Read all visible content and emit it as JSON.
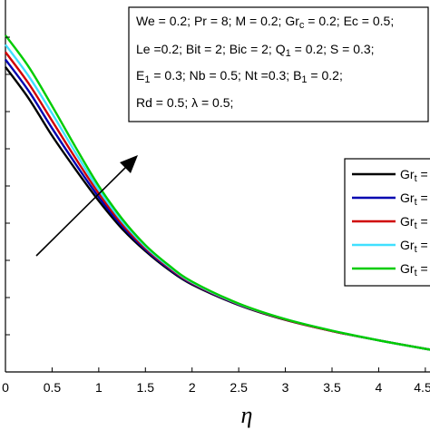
{
  "chart_data": {
    "type": "line",
    "xlabel": "η",
    "x_ticks": [
      "0",
      "0.5",
      "1",
      "1.5",
      "2",
      "2.5",
      "3",
      "3.5",
      "4",
      "4.5"
    ],
    "xlim": [
      0,
      4.55
    ],
    "ylim": [
      0,
      1
    ],
    "grid": false,
    "legend_placement": "right",
    "parameters": [
      "We = 0.2; Pr = 8; M = 0.2; Gr_c = 0.2; Ec = 0.5;",
      "Le =0.2; Bit = 2; Bic = 2; Q_1 = 0.2; S = 0.3;",
      "E_1 = 0.3; Nb = 0.5; Nt =0.3; B_1 = 0.2;",
      "Rd = 0.5; λ = 0.5;"
    ],
    "annotation": "arrow pointing in direction of increasing Gr_t",
    "x": [
      0,
      0.25,
      0.5,
      0.75,
      1.0,
      1.25,
      1.5,
      1.75,
      2.0,
      2.5,
      3.0,
      3.5,
      4.0,
      4.55
    ],
    "series": [
      {
        "name": "Gr_t =",
        "color": "#000000",
        "values": [
          0.82,
          0.735,
          0.635,
          0.545,
          0.46,
          0.385,
          0.325,
          0.275,
          0.235,
          0.18,
          0.14,
          0.11,
          0.085,
          0.06
        ]
      },
      {
        "name": "Gr_t =",
        "color": "#0000b0",
        "values": [
          0.84,
          0.755,
          0.655,
          0.56,
          0.47,
          0.392,
          0.329,
          0.278,
          0.237,
          0.181,
          0.141,
          0.11,
          0.085,
          0.06
        ]
      },
      {
        "name": "Gr_t =",
        "color": "#d00000",
        "values": [
          0.86,
          0.775,
          0.675,
          0.575,
          0.48,
          0.398,
          0.333,
          0.281,
          0.239,
          0.182,
          0.141,
          0.11,
          0.085,
          0.06
        ]
      },
      {
        "name": "Gr_t =",
        "color": "#40e0ff",
        "values": [
          0.88,
          0.795,
          0.695,
          0.59,
          0.49,
          0.405,
          0.337,
          0.284,
          0.241,
          0.183,
          0.142,
          0.111,
          0.085,
          0.06
        ]
      },
      {
        "name": "Gr_t =",
        "color": "#00cc00",
        "values": [
          0.905,
          0.82,
          0.715,
          0.605,
          0.5,
          0.412,
          0.341,
          0.287,
          0.243,
          0.184,
          0.142,
          0.111,
          0.085,
          0.06
        ]
      }
    ]
  }
}
